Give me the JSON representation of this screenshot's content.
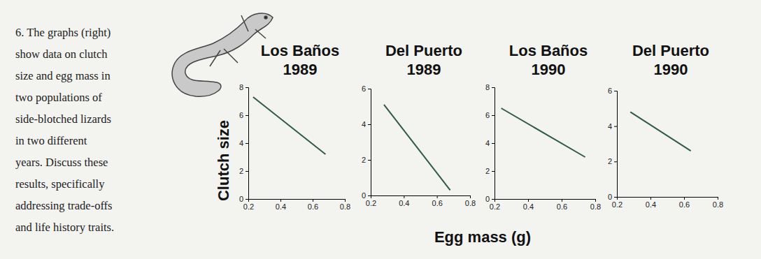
{
  "question": [
    "6. The graphs (right)",
    "show data on clutch",
    "size and egg mass in",
    "two populations of",
    "side-blotched lizards",
    "in two different",
    "years. Discuss these",
    "results, specifically",
    "addressing trade-offs",
    "and life history traits."
  ],
  "ylabel": "Clutch size",
  "xlabel": "Egg mass (g)",
  "chart_data": [
    {
      "type": "line",
      "title": "Los Baños 1989",
      "x": [
        0.23,
        0.68
      ],
      "values": [
        7.3,
        3.2
      ],
      "color": "#2f5a4a",
      "xlim": [
        0.2,
        0.8
      ],
      "xticks": [
        0.2,
        0.4,
        0.6,
        0.8
      ],
      "ylim": [
        0,
        8
      ],
      "yticks": [
        0,
        2,
        4,
        6,
        8
      ]
    },
    {
      "type": "line",
      "title": "Del Puerto 1989",
      "x": [
        0.28,
        0.68
      ],
      "values": [
        5.1,
        0.3
      ],
      "color": "#2f5a4a",
      "xlim": [
        0.2,
        0.8
      ],
      "xticks": [
        0.2,
        0.4,
        0.6,
        0.8
      ],
      "ylim": [
        0,
        6
      ],
      "yticks": [
        0,
        2,
        4,
        6
      ]
    },
    {
      "type": "line",
      "title": "Los Baños 1990",
      "x": [
        0.24,
        0.74
      ],
      "values": [
        6.5,
        3.0
      ],
      "color": "#2f5a4a",
      "xlim": [
        0.2,
        0.8
      ],
      "xticks": [
        0.2,
        0.4,
        0.6,
        0.8
      ],
      "ylim": [
        0,
        8
      ],
      "yticks": [
        0,
        2,
        4,
        6,
        8
      ]
    },
    {
      "type": "line",
      "title": "Del Puerto 1990",
      "x": [
        0.28,
        0.64
      ],
      "values": [
        4.8,
        2.6
      ],
      "color": "#2f5a4a",
      "xlim": [
        0.2,
        0.8
      ],
      "xticks": [
        0.2,
        0.4,
        0.6,
        0.8
      ],
      "ylim": [
        0,
        6
      ],
      "yticks": [
        0,
        2,
        4,
        6
      ]
    }
  ]
}
